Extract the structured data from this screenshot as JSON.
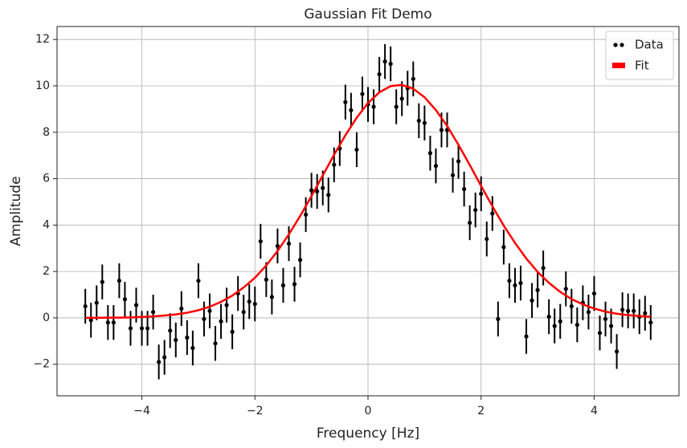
{
  "chart_data": {
    "type": "scatter",
    "title": "Gaussian Fit Demo",
    "xlabel": "Frequency [Hz]",
    "ylabel": "Amplitude",
    "xlim": [
      -5.5,
      5.5
    ],
    "ylim": [
      -3.36,
      12.56
    ],
    "xticks": [
      {
        "value": -4,
        "label": "−4"
      },
      {
        "value": -2,
        "label": "−2"
      },
      0,
      2,
      4
    ],
    "yticks": [
      {
        "value": -2,
        "label": "−2"
      },
      0,
      2,
      4,
      6,
      8,
      10,
      12
    ],
    "grid": true,
    "legend": "upper right",
    "series": [
      {
        "name": "Data",
        "type": "scatter",
        "color": "#000000",
        "error": 0.75,
        "x": [
          -5,
          -4.9,
          -4.8,
          -4.7,
          -4.6,
          -4.5,
          -4.4,
          -4.3,
          -4.2,
          -4.1,
          -4,
          -3.9,
          -3.8,
          -3.7,
          -3.6,
          -3.5,
          -3.4,
          -3.3,
          -3.2,
          -3.1,
          -3,
          -2.9,
          -2.8,
          -2.7,
          -2.6,
          -2.5,
          -2.4,
          -2.3,
          -2.2,
          -2.1,
          -2,
          -1.9,
          -1.8,
          -1.7,
          -1.6,
          -1.5,
          -1.4,
          -1.3,
          -1.2,
          -1.1,
          -1,
          -0.9,
          -0.8,
          -0.7,
          -0.6,
          -0.5,
          -0.4,
          -0.3,
          -0.2,
          -0.1,
          0,
          0.1,
          0.2,
          0.3,
          0.4,
          0.5,
          0.6,
          0.7,
          0.8,
          0.9,
          1,
          1.1,
          1.2,
          1.3,
          1.4,
          1.5,
          1.6,
          1.7,
          1.8,
          1.9,
          2,
          2.1,
          2.2,
          2.3,
          2.4,
          2.5,
          2.6,
          2.7,
          2.8,
          2.9,
          3,
          3.1,
          3.2,
          3.3,
          3.4,
          3.5,
          3.6,
          3.7,
          3.8,
          3.9,
          4,
          4.1,
          4.2,
          4.3,
          4.4,
          4.5,
          4.6,
          4.7,
          4.8,
          4.9,
          5
        ],
        "values": [
          0.5,
          -0.1,
          0.65,
          1.55,
          -0.2,
          -0.2,
          1.6,
          0.8,
          -0.45,
          0.55,
          -0.45,
          -0.45,
          0.25,
          -1.9,
          -1.7,
          -0.55,
          -0.95,
          0.4,
          -0.85,
          -1.3,
          1.6,
          -0.05,
          0.3,
          -1.1,
          -0.15,
          0.55,
          -0.6,
          1.05,
          0.25,
          0.7,
          0.6,
          3.3,
          1.65,
          0.9,
          3.1,
          1.4,
          3.2,
          1.45,
          2.5,
          4.45,
          5.5,
          5.45,
          5.6,
          5.3,
          6.6,
          7.3,
          9.3,
          8.95,
          7.25,
          9.65,
          9.2,
          9.1,
          10.5,
          11.05,
          10.95,
          9.1,
          9.45,
          9.9,
          10.3,
          8.5,
          8.4,
          7.1,
          6.55,
          8.1,
          8.1,
          6.15,
          6.75,
          5.55,
          4.1,
          4.65,
          5.35,
          3.4,
          4.5,
          -0.05,
          3.05,
          1.6,
          1.4,
          1.5,
          -0.8,
          0.75,
          1.2,
          2.15,
          0.05,
          -0.35,
          -0.15,
          1.25,
          0.5,
          -0.3,
          0.65,
          0.25,
          1.05,
          -0.65,
          -0.05,
          -0.35,
          -1.45,
          0.35,
          0.3,
          0.3,
          0.05,
          0.2,
          -0.2
        ]
      },
      {
        "name": "Fit",
        "type": "line",
        "color": "#ff0000",
        "x": [
          -5,
          -4.8,
          -4.6,
          -4.4,
          -4.2,
          -4,
          -3.8,
          -3.6,
          -3.4,
          -3.2,
          -3,
          -2.8,
          -2.6,
          -2.4,
          -2.2,
          -2,
          -1.8,
          -1.6,
          -1.4,
          -1.2,
          -1,
          -0.8,
          -0.6,
          -0.4,
          -0.2,
          0,
          0.2,
          0.4,
          0.6,
          0.8,
          1,
          1.2,
          1.4,
          1.6,
          1.8,
          2,
          2.2,
          2.4,
          2.6,
          2.8,
          3,
          3.2,
          3.4,
          3.6,
          3.8,
          4,
          4.2,
          4.4,
          4.6,
          4.8,
          5
        ],
        "values": [
          0,
          0,
          0.01,
          0.01,
          0.02,
          0.04,
          0.06,
          0.1,
          0.15,
          0.22,
          0.33,
          0.48,
          0.69,
          0.96,
          1.31,
          1.73,
          2.26,
          2.88,
          3.6,
          4.39,
          5.25,
          6.14,
          7.03,
          7.87,
          8.63,
          9.26,
          9.72,
          9.99,
          10.04,
          9.88,
          9.51,
          8.96,
          8.27,
          7.46,
          6.59,
          5.69,
          4.81,
          3.98,
          3.23,
          2.56,
          1.98,
          1.51,
          1.12,
          0.81,
          0.58,
          0.4,
          0.27,
          0.18,
          0.12,
          0.08,
          0.05
        ]
      }
    ]
  }
}
